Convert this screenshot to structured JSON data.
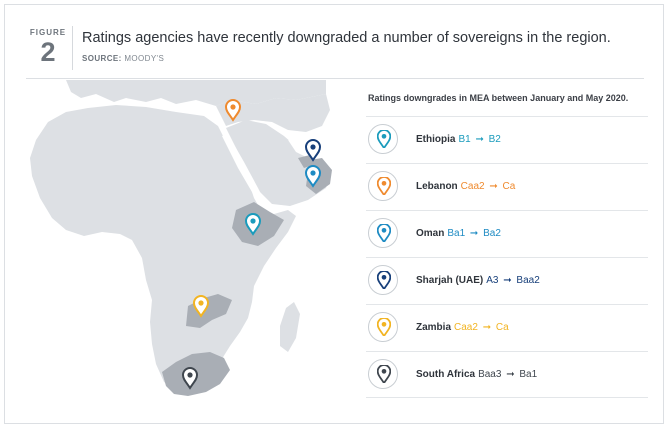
{
  "header": {
    "figure_label": "FIGURE",
    "figure_number": "2",
    "title": "Ratings agencies have recently downgraded a number of sovereigns in the region.",
    "source_label": "SOURCE:",
    "source_value": "MOODY'S"
  },
  "legend": {
    "title": "Ratings downgrades in MEA between January and May 2020.",
    "arrow_glyph": "➞",
    "items": [
      {
        "country": "Ethiopia",
        "from": "B1",
        "to": "B2",
        "color": "#1a9bbc"
      },
      {
        "country": "Lebanon",
        "from": "Caa2",
        "to": "Ca",
        "color": "#ef8a2e"
      },
      {
        "country": "Oman",
        "from": "Ba1",
        "to": "Ba2",
        "color": "#1e8bc3"
      },
      {
        "country": "Sharjah (UAE)",
        "from": "A3",
        "to": "Baa2",
        "color": "#173f7a"
      },
      {
        "country": "Zambia",
        "from": "Caa2",
        "to": "Ca",
        "color": "#f2b422"
      },
      {
        "country": "South Africa",
        "from": "Baa3",
        "to": "Ba1",
        "color": "#3f464e"
      }
    ]
  },
  "map": {
    "land_color": "#dde0e4",
    "highlight_color": "#a9aeb5",
    "markers": [
      "Lebanon",
      "Sharjah (UAE)",
      "Oman",
      "Ethiopia",
      "Zambia",
      "South Africa"
    ]
  }
}
